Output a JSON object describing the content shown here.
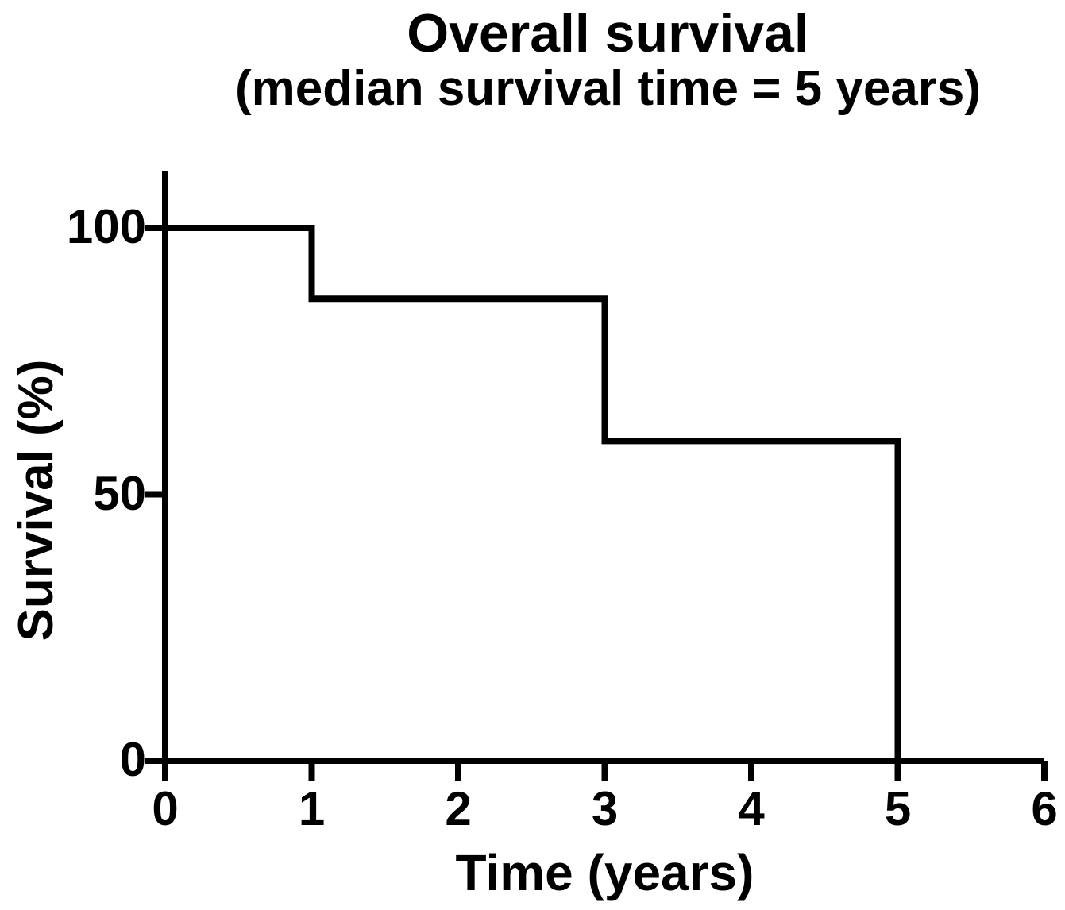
{
  "page": {
    "background": "#ffffff",
    "text_color": "#000000"
  },
  "chart_data": {
    "type": "line",
    "subtype": "step (Kaplan-Meier survival curve)",
    "title": "Overall survival",
    "subtitle": "(median survival time = 5 years)",
    "xlabel": "Time (years)",
    "ylabel": "Survival (%)",
    "xlim": [
      0,
      6
    ],
    "ylim": [
      0,
      100
    ],
    "x_ticks": [
      0,
      1,
      2,
      3,
      4,
      5,
      6
    ],
    "y_ticks": [
      0,
      50,
      100
    ],
    "grid": false,
    "legend": false,
    "line_color": "#000000",
    "axis_color": "#000000",
    "median_survival_years": 5,
    "series": [
      {
        "name": "Overall survival",
        "step_points": [
          [
            0,
            100
          ],
          [
            1,
            100
          ],
          [
            1,
            86.7
          ],
          [
            3,
            86.7
          ],
          [
            3,
            60
          ],
          [
            5,
            60
          ],
          [
            5,
            0
          ]
        ]
      }
    ]
  }
}
